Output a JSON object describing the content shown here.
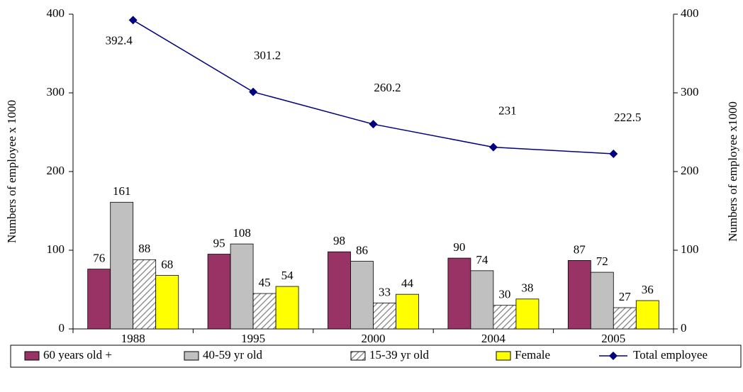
{
  "chart_data": {
    "type": "bar",
    "categories": [
      "1988",
      "1995",
      "2000",
      "2004",
      "2005"
    ],
    "y_label": "Numbers of employee  x 1000",
    "y2_label": "Numbers of employee  x1000",
    "ylim": [
      0,
      400
    ],
    "yticks": [
      0,
      100,
      200,
      300,
      400
    ],
    "y2lim": [
      0,
      400
    ],
    "y2ticks": [
      0,
      100,
      200,
      300,
      400
    ],
    "grid": false,
    "legend": "bottom",
    "series": [
      {
        "name": "60 years old +",
        "type": "bar",
        "color": "#993366",
        "values": [
          76,
          95,
          98,
          90,
          87
        ]
      },
      {
        "name": "40-59 yr old",
        "type": "bar",
        "color": "#c0c0c0",
        "values": [
          161,
          108,
          86,
          74,
          72
        ]
      },
      {
        "name": "15-39 yr old",
        "type": "bar",
        "color": "#808080",
        "pattern": "hatch",
        "values": [
          88,
          45,
          33,
          30,
          27
        ]
      },
      {
        "name": "Female",
        "type": "bar",
        "color": "#ffff00",
        "values": [
          68,
          54,
          44,
          38,
          36
        ]
      },
      {
        "name": "Total employee",
        "type": "line",
        "axis": "y2",
        "color": "#000080",
        "values": [
          392.4,
          301.2,
          260.2,
          231,
          222.5
        ]
      }
    ]
  }
}
